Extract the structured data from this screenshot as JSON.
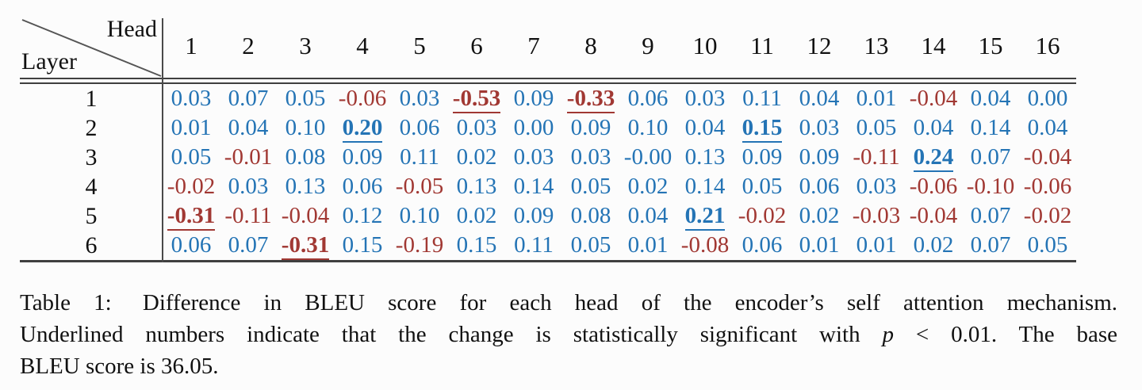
{
  "colors": {
    "positive": "#2474b5",
    "negative": "#a13833",
    "rule": "#3f3f3f"
  },
  "table": {
    "corner": {
      "head": "Head",
      "layer": "Layer"
    },
    "head_columns": [
      "1",
      "2",
      "3",
      "4",
      "5",
      "6",
      "7",
      "8",
      "9",
      "10",
      "11",
      "12",
      "13",
      "14",
      "15",
      "16"
    ],
    "rows": [
      {
        "layer": "1",
        "cells": [
          {
            "v": "0.03",
            "c": "blue"
          },
          {
            "v": "0.07",
            "c": "blue"
          },
          {
            "v": "0.05",
            "c": "blue"
          },
          {
            "v": "-0.06",
            "c": "red"
          },
          {
            "v": "0.03",
            "c": "blue"
          },
          {
            "v": "-0.53",
            "c": "red",
            "sig": true
          },
          {
            "v": "0.09",
            "c": "blue"
          },
          {
            "v": "-0.33",
            "c": "red",
            "sig": true
          },
          {
            "v": "0.06",
            "c": "blue"
          },
          {
            "v": "0.03",
            "c": "blue"
          },
          {
            "v": "0.11",
            "c": "blue"
          },
          {
            "v": "0.04",
            "c": "blue"
          },
          {
            "v": "0.01",
            "c": "blue"
          },
          {
            "v": "-0.04",
            "c": "red"
          },
          {
            "v": "0.04",
            "c": "blue"
          },
          {
            "v": "0.00",
            "c": "blue"
          }
        ]
      },
      {
        "layer": "2",
        "cells": [
          {
            "v": "0.01",
            "c": "blue"
          },
          {
            "v": "0.04",
            "c": "blue"
          },
          {
            "v": "0.10",
            "c": "blue"
          },
          {
            "v": "0.20",
            "c": "blue",
            "sig": true
          },
          {
            "v": "0.06",
            "c": "blue"
          },
          {
            "v": "0.03",
            "c": "blue"
          },
          {
            "v": "0.00",
            "c": "blue"
          },
          {
            "v": "0.09",
            "c": "blue"
          },
          {
            "v": "0.10",
            "c": "blue"
          },
          {
            "v": "0.04",
            "c": "blue"
          },
          {
            "v": "0.15",
            "c": "blue",
            "sig": true
          },
          {
            "v": "0.03",
            "c": "blue"
          },
          {
            "v": "0.05",
            "c": "blue"
          },
          {
            "v": "0.04",
            "c": "blue"
          },
          {
            "v": "0.14",
            "c": "blue"
          },
          {
            "v": "0.04",
            "c": "blue"
          }
        ]
      },
      {
        "layer": "3",
        "cells": [
          {
            "v": "0.05",
            "c": "blue"
          },
          {
            "v": "-0.01",
            "c": "red"
          },
          {
            "v": "0.08",
            "c": "blue"
          },
          {
            "v": "0.09",
            "c": "blue"
          },
          {
            "v": "0.11",
            "c": "blue"
          },
          {
            "v": "0.02",
            "c": "blue"
          },
          {
            "v": "0.03",
            "c": "blue"
          },
          {
            "v": "0.03",
            "c": "blue"
          },
          {
            "v": "-0.00",
            "c": "blue"
          },
          {
            "v": "0.13",
            "c": "blue"
          },
          {
            "v": "0.09",
            "c": "blue"
          },
          {
            "v": "0.09",
            "c": "blue"
          },
          {
            "v": "-0.11",
            "c": "red"
          },
          {
            "v": "0.24",
            "c": "blue",
            "sig": true
          },
          {
            "v": "0.07",
            "c": "blue"
          },
          {
            "v": "-0.04",
            "c": "red"
          }
        ]
      },
      {
        "layer": "4",
        "cells": [
          {
            "v": "-0.02",
            "c": "red"
          },
          {
            "v": "0.03",
            "c": "blue"
          },
          {
            "v": "0.13",
            "c": "blue"
          },
          {
            "v": "0.06",
            "c": "blue"
          },
          {
            "v": "-0.05",
            "c": "red"
          },
          {
            "v": "0.13",
            "c": "blue"
          },
          {
            "v": "0.14",
            "c": "blue"
          },
          {
            "v": "0.05",
            "c": "blue"
          },
          {
            "v": "0.02",
            "c": "blue"
          },
          {
            "v": "0.14",
            "c": "blue"
          },
          {
            "v": "0.05",
            "c": "blue"
          },
          {
            "v": "0.06",
            "c": "blue"
          },
          {
            "v": "0.03",
            "c": "blue"
          },
          {
            "v": "-0.06",
            "c": "red"
          },
          {
            "v": "-0.10",
            "c": "red"
          },
          {
            "v": "-0.06",
            "c": "red"
          }
        ]
      },
      {
        "layer": "5",
        "cells": [
          {
            "v": "-0.31",
            "c": "red",
            "sig": true
          },
          {
            "v": "-0.11",
            "c": "red"
          },
          {
            "v": "-0.04",
            "c": "red"
          },
          {
            "v": "0.12",
            "c": "blue"
          },
          {
            "v": "0.10",
            "c": "blue"
          },
          {
            "v": "0.02",
            "c": "blue"
          },
          {
            "v": "0.09",
            "c": "blue"
          },
          {
            "v": "0.08",
            "c": "blue"
          },
          {
            "v": "0.04",
            "c": "blue"
          },
          {
            "v": "0.21",
            "c": "blue",
            "sig": true
          },
          {
            "v": "-0.02",
            "c": "red"
          },
          {
            "v": "0.02",
            "c": "blue"
          },
          {
            "v": "-0.03",
            "c": "red"
          },
          {
            "v": "-0.04",
            "c": "red"
          },
          {
            "v": "0.07",
            "c": "blue"
          },
          {
            "v": "-0.02",
            "c": "red"
          }
        ]
      },
      {
        "layer": "6",
        "cells": [
          {
            "v": "0.06",
            "c": "blue"
          },
          {
            "v": "0.07",
            "c": "blue"
          },
          {
            "v": "-0.31",
            "c": "red",
            "sig": true
          },
          {
            "v": "0.15",
            "c": "blue"
          },
          {
            "v": "-0.19",
            "c": "red"
          },
          {
            "v": "0.15",
            "c": "blue"
          },
          {
            "v": "0.11",
            "c": "blue"
          },
          {
            "v": "0.05",
            "c": "blue"
          },
          {
            "v": "0.01",
            "c": "blue"
          },
          {
            "v": "-0.08",
            "c": "red"
          },
          {
            "v": "0.06",
            "c": "blue"
          },
          {
            "v": "0.01",
            "c": "blue"
          },
          {
            "v": "0.01",
            "c": "blue"
          },
          {
            "v": "0.02",
            "c": "blue"
          },
          {
            "v": "0.07",
            "c": "blue"
          },
          {
            "v": "0.05",
            "c": "blue"
          }
        ]
      }
    ]
  },
  "caption": {
    "label": "Table 1:",
    "line1_rest": "Difference in BLEU score for each head of the encoder’s self attention mechanism.",
    "line2_pre": "Underlined numbers indicate that the change is statistically significant with",
    "line2_var": "p",
    "line2_post": "< 0.01.  The base",
    "line3": "BLEU score is 36.05."
  }
}
